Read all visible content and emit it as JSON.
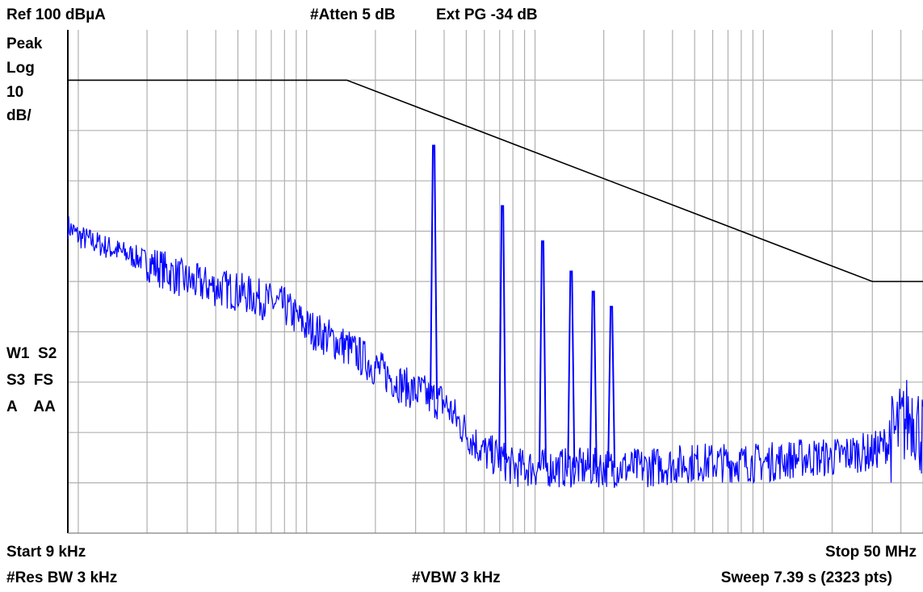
{
  "header": {
    "ref_level": "Ref 100 dBµA",
    "attenuation": "#Atten 5 dB",
    "ext_pg": "Ext PG -34 dB"
  },
  "side_panel": {
    "detector": "Peak",
    "scale_type": "Log",
    "scale_value": "10",
    "scale_unit": "dB/",
    "trace_row1": "W1  S2",
    "trace_row2": "S3  FS",
    "trace_row3": "A    AA"
  },
  "footer": {
    "start": "Start 9 kHz",
    "stop": "Stop 50 MHz",
    "rbw": "#Res BW 3 kHz",
    "vbw": "#VBW 3 kHz",
    "sweep": "Sweep 7.39 s (2323 pts)"
  },
  "colors": {
    "trace": "#0000ff",
    "limit_line": "#000000",
    "grid": "#b0b0b0",
    "background": "#ffffff"
  },
  "chart_data": {
    "type": "line",
    "x_scale": "log",
    "x_unit": "Hz",
    "xlim": [
      9000,
      50000000
    ],
    "ylim": [
      0,
      100
    ],
    "y_unit": "dBµA",
    "grid": true,
    "limit_line": {
      "x": [
        9000,
        150000,
        30000000,
        50000000
      ],
      "y": [
        90,
        90,
        50,
        50
      ]
    },
    "series": [
      {
        "x": [
          9000,
          10000,
          15000,
          20000,
          30000,
          50000,
          80000,
          100000,
          150000,
          200000,
          250000,
          300000,
          320000,
          340000,
          400000,
          500000,
          600000,
          700000,
          800000,
          1000000,
          1200000,
          1500000,
          2000000,
          3000000,
          5000000,
          10000000,
          15000000,
          20000000,
          25000000,
          30000000,
          35000000,
          40000000,
          45000000,
          50000000
        ],
        "y": [
          61,
          59,
          56,
          54,
          50,
          48,
          45,
          41,
          37,
          33,
          30,
          28,
          28,
          27,
          26,
          20,
          16,
          15,
          13,
          13,
          13,
          13,
          13,
          13,
          14,
          14,
          15,
          15,
          16,
          16,
          18,
          21,
          24,
          19
        ]
      }
    ],
    "peaks": [
      {
        "x": 360000,
        "y": 77
      },
      {
        "x": 720000,
        "y": 65
      },
      {
        "x": 1080000,
        "y": 58
      },
      {
        "x": 1440000,
        "y": 52
      },
      {
        "x": 1800000,
        "y": 48
      },
      {
        "x": 2160000,
        "y": 45
      }
    ]
  }
}
